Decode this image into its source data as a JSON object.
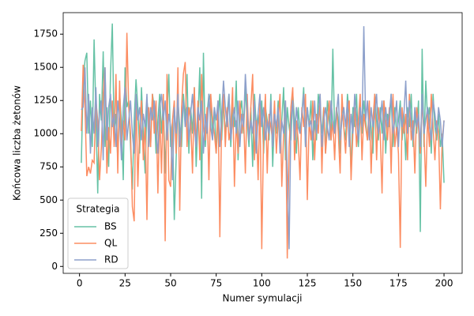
{
  "chart_data": {
    "type": "line",
    "x_label": "Numer symulacji",
    "y_label": "Końcowa liczba żetonów",
    "legend_title": "Strategia",
    "legend_position": "lower left",
    "grid": false,
    "xlim": [
      -8.95,
      209.95
    ],
    "xticks": [
      0,
      25,
      50,
      75,
      100,
      125,
      150,
      175,
      200
    ],
    "ylim": [
      -52,
      1912
    ],
    "yticks": [
      0,
      250,
      500,
      750,
      1000,
      1250,
      1500,
      1750
    ],
    "x": [
      1,
      2,
      3,
      4,
      5,
      6,
      7,
      8,
      9,
      10,
      11,
      12,
      13,
      14,
      15,
      16,
      17,
      18,
      19,
      20,
      21,
      22,
      23,
      24,
      25,
      26,
      27,
      28,
      29,
      30,
      31,
      32,
      33,
      34,
      35,
      36,
      37,
      38,
      39,
      40,
      41,
      42,
      43,
      44,
      45,
      46,
      47,
      48,
      49,
      50,
      51,
      52,
      53,
      54,
      55,
      56,
      57,
      58,
      59,
      60,
      61,
      62,
      63,
      64,
      65,
      66,
      67,
      68,
      69,
      70,
      71,
      72,
      73,
      74,
      75,
      76,
      77,
      78,
      79,
      80,
      81,
      82,
      83,
      84,
      85,
      86,
      87,
      88,
      89,
      90,
      91,
      92,
      93,
      94,
      95,
      96,
      97,
      98,
      99,
      100,
      101,
      102,
      103,
      104,
      105,
      106,
      107,
      108,
      109,
      110,
      111,
      112,
      113,
      114,
      115,
      116,
      117,
      118,
      119,
      120,
      121,
      122,
      123,
      124,
      125,
      126,
      127,
      128,
      129,
      130,
      131,
      132,
      133,
      134,
      135,
      136,
      137,
      138,
      139,
      140,
      141,
      142,
      143,
      144,
      145,
      146,
      147,
      148,
      149,
      150,
      151,
      152,
      153,
      154,
      155,
      156,
      157,
      158,
      159,
      160,
      161,
      162,
      163,
      164,
      165,
      166,
      167,
      168,
      169,
      170,
      171,
      172,
      173,
      174,
      175,
      176,
      177,
      178,
      179,
      180,
      181,
      182,
      183,
      184,
      185,
      186,
      187,
      188,
      189,
      190,
      191,
      192,
      193,
      194,
      195,
      196,
      197,
      198,
      199,
      200
    ],
    "series": [
      {
        "name": "BS",
        "color": "#66c2a5",
        "values": [
          780,
          1400,
          1550,
          1610,
          1000,
          1250,
          900,
          1710,
          1150,
          550,
          1300,
          1100,
          1620,
          900,
          1200,
          750,
          1450,
          1830,
          1000,
          1150,
          800,
          1300,
          1100,
          650,
          1500,
          1200,
          1250,
          900,
          580,
          1100,
          1410,
          1200,
          850,
          1350,
          1000,
          700,
          1250,
          1100,
          900,
          1300,
          1200,
          850,
          1100,
          1300,
          1000,
          1250,
          700,
          1150,
          1450,
          900,
          1100,
          350,
          800,
          1250,
          1050,
          900,
          1300,
          1100,
          1450,
          850,
          1200,
          1000,
          1350,
          750,
          1100,
          1500,
          510,
          1610,
          900,
          1150,
          1300,
          1250,
          1000,
          1200,
          850,
          1100,
          1300,
          950,
          1250,
          1000,
          1150,
          1300,
          900,
          1200,
          1050,
          1400,
          800,
          1150,
          1250,
          1000,
          1350,
          1100,
          900,
          1200,
          750,
          1300,
          1050,
          1150,
          1000,
          1250,
          850,
          1200,
          1100,
          950,
          1300,
          750,
          1150,
          1000,
          1250,
          900,
          1100,
          1350,
          800,
          1200,
          1050,
          950,
          1300,
          1100,
          850,
          1200,
          1000,
          1150,
          1350,
          900,
          1200,
          1050,
          1250,
          800,
          1100,
          950,
          1300,
          1150,
          1000,
          1200,
          850,
          1250,
          1100,
          950,
          1640,
          1000,
          1200,
          1100,
          850,
          1250,
          1050,
          950,
          1300,
          1150,
          700,
          1200,
          1050,
          1300,
          900,
          1150,
          1000,
          1250,
          1100,
          950,
          1200,
          1050,
          850,
          1300,
          1100,
          950,
          1200,
          1000,
          1250,
          850,
          1150,
          1050,
          1300,
          900,
          1200,
          1000,
          1100,
          1250,
          950,
          1150,
          800,
          1200,
          1050,
          1300,
          900,
          1150,
          1000,
          1250,
          260,
          1640,
          900,
          1400,
          1100,
          1200,
          850,
          1300,
          1050,
          950,
          1150,
          900,
          1000,
          630
        ]
      },
      {
        "name": "QL",
        "color": "#fc8d62",
        "values": [
          1020,
          1520,
          1200,
          680,
          750,
          700,
          800,
          780,
          1250,
          1100,
          650,
          900,
          1300,
          1500,
          700,
          1050,
          850,
          1250,
          900,
          1450,
          700,
          1400,
          850,
          1100,
          950,
          1760,
          1200,
          1000,
          450,
          340,
          1300,
          600,
          1050,
          1250,
          800,
          1100,
          350,
          1200,
          900,
          1300,
          1000,
          1250,
          550,
          1150,
          700,
          1300,
          190,
          1450,
          650,
          600,
          1100,
          1250,
          850,
          1500,
          420,
          1200,
          1450,
          1540,
          900,
          1200,
          1100,
          700,
          1350,
          900,
          1250,
          800,
          1450,
          1050,
          950,
          1200,
          650,
          1300,
          1100,
          1000,
          850,
          1250,
          220,
          1100,
          1300,
          900,
          1200,
          950,
          1050,
          1350,
          600,
          1100,
          850,
          1250,
          1000,
          1150,
          700,
          1300,
          950,
          1200,
          1450,
          800,
          1100,
          650,
          1250,
          130,
          1000,
          1300,
          700,
          1150,
          1050,
          950,
          1250,
          850,
          1100,
          1300,
          600,
          1000,
          1250,
          60,
          900,
          1200,
          1350,
          800,
          1100,
          950,
          650,
          1200,
          1050,
          1300,
          500,
          1100,
          950,
          1250,
          800,
          1150,
          1000,
          1300,
          700,
          1200,
          850,
          1050,
          1250,
          950,
          1100,
          800,
          1200,
          1000,
          700,
          1300,
          1050,
          850,
          1150,
          1250,
          650,
          1000,
          1200,
          900,
          1100,
          1300,
          800,
          1150,
          1050,
          950,
          1250,
          700,
          1100,
          1300,
          800,
          1200,
          1000,
          550,
          1250,
          1100,
          950,
          1200,
          700,
          1300,
          900,
          1050,
          850,
          140,
          1200,
          1000,
          1150,
          800,
          1300,
          950,
          1100,
          700,
          1200,
          1050,
          850,
          1250,
          1000,
          600,
          1150,
          900,
          1300,
          1050,
          800,
          1100,
          1000,
          430,
          950,
          1100
        ]
      },
      {
        "name": "RD",
        "color": "#8da0cb",
        "values": [
          1180,
          1200,
          1500,
          1000,
          1300,
          850,
          1200,
          1000,
          1350,
          900,
          1150,
          1250,
          800,
          1500,
          950,
          1200,
          1300,
          1050,
          1150,
          900,
          1250,
          1100,
          800,
          1200,
          1350,
          950,
          1100,
          1250,
          1000,
          850,
          1300,
          1100,
          1200,
          950,
          1150,
          1050,
          1300,
          900,
          1200,
          1100,
          1250,
          1000,
          850,
          1200,
          1300,
          1100,
          1250,
          950,
          1150,
          1050,
          650,
          1200,
          1000,
          1300,
          900,
          1100,
          1250,
          1050,
          1200,
          950,
          1150,
          1300,
          1050,
          900,
          1200,
          1100,
          1250,
          850,
          1150,
          1000,
          1300,
          1050,
          950,
          1200,
          1100,
          1250,
          900,
          1150,
          1400,
          1200,
          1050,
          1300,
          950,
          1100,
          1200,
          1000,
          1250,
          900,
          1150,
          1050,
          1450,
          1200,
          950,
          1100,
          1000,
          1250,
          850,
          1150,
          1300,
          1050,
          1200,
          950,
          1100,
          1000,
          1250,
          900,
          1150,
          1050,
          1200,
          850,
          1100,
          1000,
          1250,
          700,
          130,
          1100,
          1250,
          950,
          1200,
          1050,
          1000,
          1150,
          1300,
          900,
          1200,
          1050,
          1100,
          950,
          1250,
          1000,
          1150,
          1300,
          900,
          1100,
          1200,
          1050,
          950,
          1250,
          1100,
          1000,
          1150,
          1300,
          950,
          1100,
          1200,
          1050,
          1250,
          900,
          1150,
          1000,
          1300,
          1100,
          950,
          1200,
          1050,
          1810,
          1100,
          1250,
          950,
          1200,
          1050,
          1150,
          1300,
          1000,
          1100,
          1250,
          950,
          1200,
          1050,
          1150,
          1300,
          1000,
          1100,
          1250,
          900,
          1200,
          1050,
          1150,
          1400,
          1000,
          1250,
          1100,
          950,
          1200,
          1050,
          1150,
          900,
          1300,
          1000,
          1100,
          1200,
          1050,
          950,
          1250,
          1150,
          1000,
          1200,
          1100,
          900,
          1100
        ]
      }
    ]
  }
}
